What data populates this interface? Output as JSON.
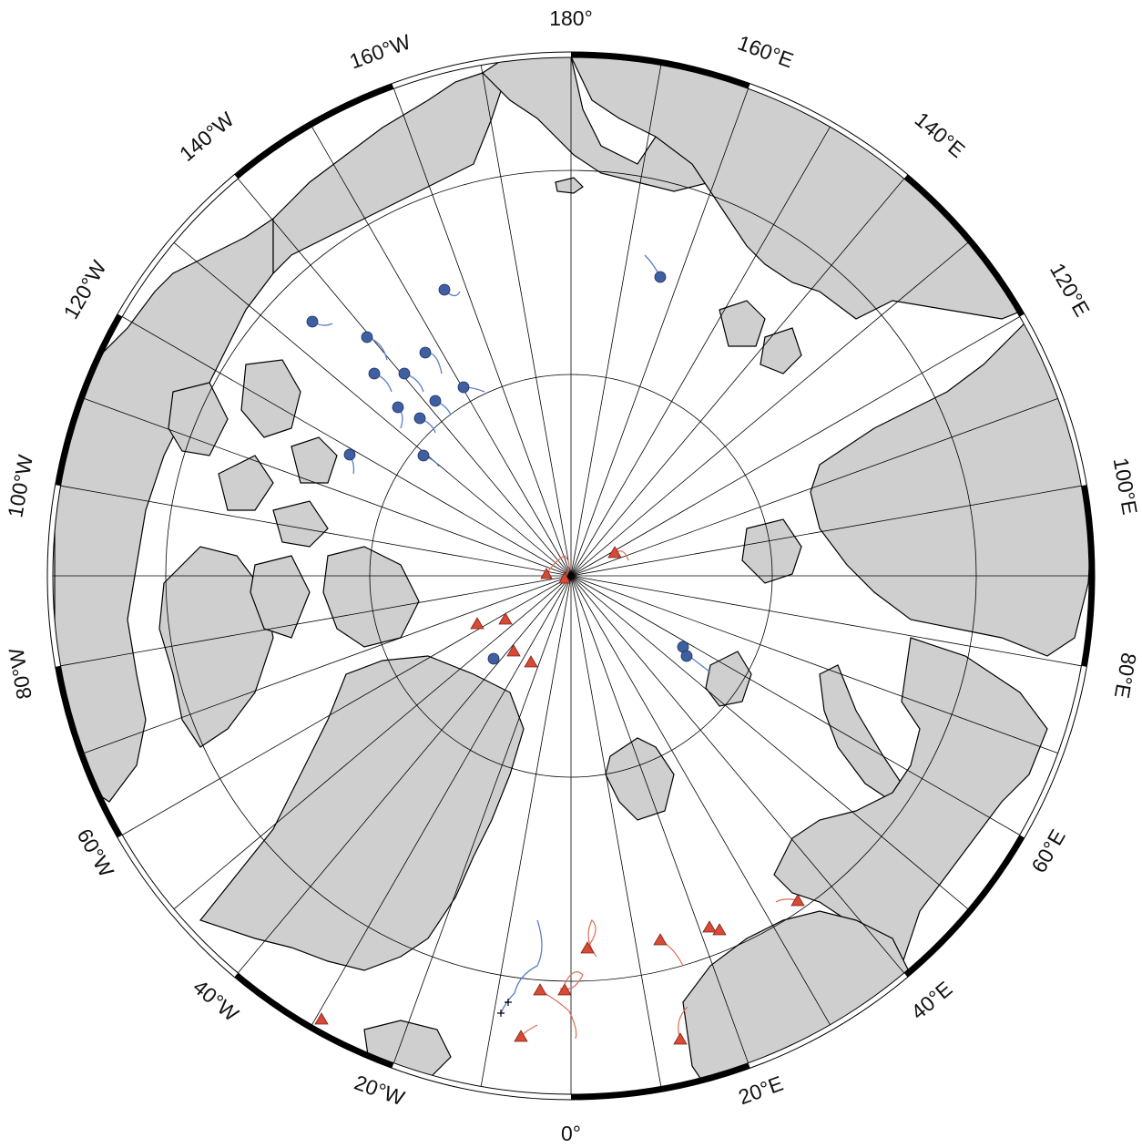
{
  "map": {
    "projection": "polar-stereographic-north",
    "colors": {
      "land": "#cfcfcf",
      "land_outline": "#000000",
      "ocean": "#ffffff",
      "graticule": "#000000",
      "frame_dark": "#000000",
      "buoy_blue": "#3f5fa3",
      "track_blue": "#5b7fc7",
      "buoy_red": "#d84a35",
      "track_red": "#e06a55"
    },
    "labels": {
      "lon_0": "0°",
      "lon_20E": "20°E",
      "lon_40E": "40°E",
      "lon_60E": "60°E",
      "lon_80E": "80°E",
      "lon_100E": "100°E",
      "lon_120E": "120°E",
      "lon_140E": "140°E",
      "lon_160E": "160°E",
      "lon_180": "180°",
      "lon_160W": "160°W",
      "lon_140W": "140°W",
      "lon_120W": "120°W",
      "lon_100W": "100°W",
      "lon_80W": "80°W",
      "lon_60W": "60°W",
      "lon_40W": "40°W",
      "lon_20W": "20°W"
    },
    "legend_markers": {
      "circle": "blue-circle-buoy",
      "triangle": "red-triangle-buoy",
      "cross": "cross-marker"
    }
  }
}
